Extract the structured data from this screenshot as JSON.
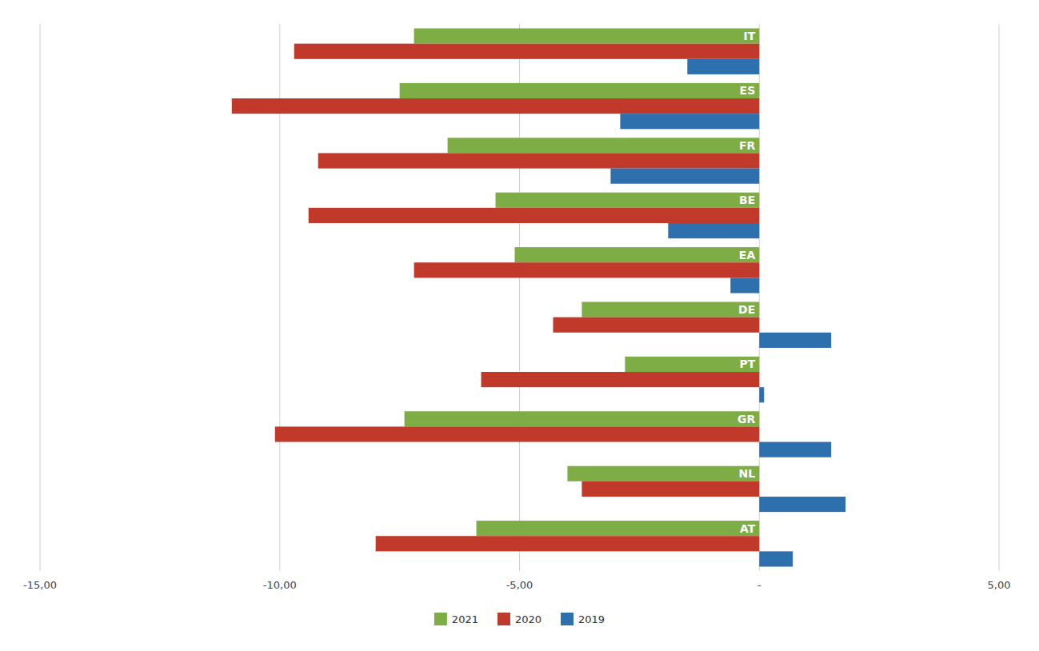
{
  "chart_data": {
    "type": "bar",
    "orientation": "horizontal",
    "categories": [
      "IT",
      "ES",
      "FR",
      "BE",
      "EA",
      "DE",
      "PT",
      "GR",
      "NL",
      "AT"
    ],
    "series": [
      {
        "name": "2021",
        "color": "#7fad45",
        "values": [
          -7.2,
          -7.5,
          -6.5,
          -5.5,
          -5.1,
          -3.7,
          -2.8,
          -7.4,
          -4.0,
          -5.9
        ]
      },
      {
        "name": "2020",
        "color": "#c0392b",
        "values": [
          -9.7,
          -11.0,
          -9.2,
          -9.4,
          -7.2,
          -4.3,
          -5.8,
          -10.1,
          -3.7,
          -8.0
        ]
      },
      {
        "name": "2019",
        "color": "#2e6fad",
        "values": [
          -1.5,
          -2.9,
          -3.1,
          -1.9,
          -0.6,
          1.5,
          0.1,
          1.5,
          1.8,
          0.7
        ]
      }
    ],
    "xlim": [
      -15.0,
      5.0
    ],
    "xticks": [
      {
        "value": -15.0,
        "label": "-15,00"
      },
      {
        "value": -10.0,
        "label": "-10,00"
      },
      {
        "value": -5.0,
        "label": "-5,00"
      },
      {
        "value": 0.0,
        "label": "-"
      },
      {
        "value": 5.0,
        "label": "5,00"
      }
    ],
    "grid": true,
    "legend": "bottom"
  }
}
